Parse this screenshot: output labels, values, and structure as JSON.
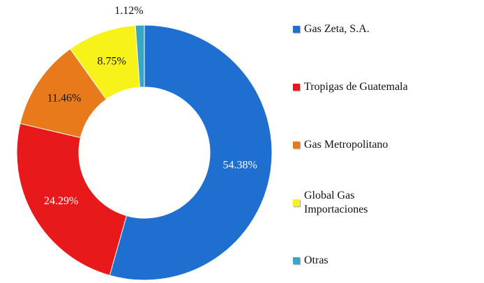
{
  "chart_data": {
    "type": "donut",
    "categories": [
      "Gas Zeta, S.A.",
      "Tropigas de Guatemala",
      "Gas Metropolitano",
      "Global Gas Importaciones",
      "Otras"
    ],
    "values": [
      54.38,
      24.29,
      11.46,
      8.75,
      1.12
    ],
    "value_labels": [
      "54.38%",
      "24.29%",
      "11.46%",
      "8.75%",
      "1.12%"
    ],
    "colors": [
      "#1f6fd0",
      "#e8191b",
      "#e87a1c",
      "#f6f21a",
      "#3aa6c6"
    ],
    "legend": "right"
  }
}
